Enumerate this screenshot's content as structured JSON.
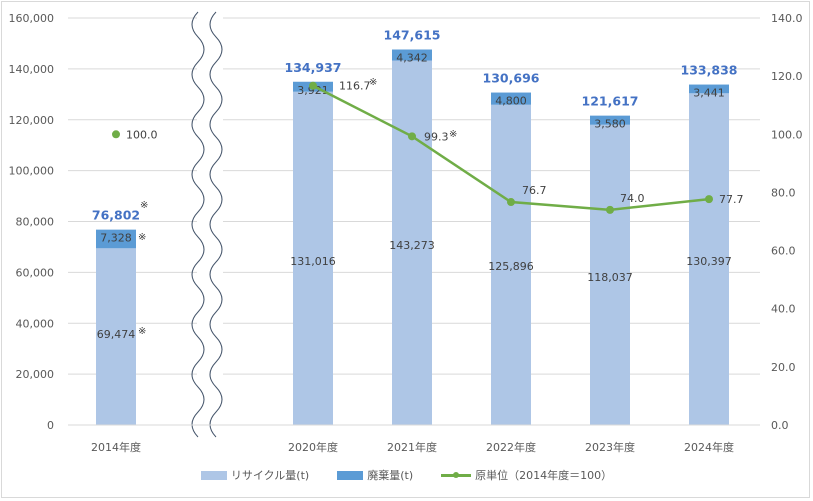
{
  "chart_data": {
    "type": "bar+line",
    "title": "",
    "categories": [
      "2014年度",
      "2020年度",
      "2021年度",
      "2022年度",
      "2023年度",
      "2024年度"
    ],
    "series": [
      {
        "name": "リサイクル量(t)",
        "type": "stacked-bar",
        "axis": "left",
        "color": "#AEC6E6",
        "values": [
          69474,
          131016,
          143273,
          125896,
          118037,
          130397
        ],
        "labels": [
          "69,474",
          "131,016",
          "143,273",
          "125,896",
          "118,037",
          "130,397"
        ]
      },
      {
        "name": "廃棄量(t)",
        "type": "stacked-bar",
        "axis": "left",
        "color": "#5B9BD5",
        "values": [
          7328,
          3921,
          4342,
          4800,
          3580,
          3441
        ],
        "labels": [
          "7,328",
          "3,921",
          "4,342",
          "4,800",
          "3,580",
          "3,441"
        ]
      },
      {
        "name": "原単位（2014年度＝100）",
        "type": "line",
        "axis": "right",
        "color": "#70AD47",
        "values": [
          100.0,
          116.7,
          99.3,
          76.7,
          74.0,
          77.7
        ],
        "labels": [
          "100.0",
          "116.7",
          "99.3",
          "76.7",
          "74.0",
          "77.7"
        ]
      }
    ],
    "totals": [
      76802,
      134937,
      147615,
      130696,
      121617,
      133838
    ],
    "total_labels": [
      "76,802",
      "134,937",
      "147,615",
      "130,696",
      "121,617",
      "133,838"
    ],
    "annotations": [
      "※ on 2014年度 values (76,802 / 7,328 / 69,474)",
      "※ on 116.7 and 99.3"
    ],
    "note_mark": "※",
    "axis_break": "between 2014年度 and 2020年度",
    "y_left": {
      "ticks": [
        "0",
        "20,000",
        "40,000",
        "60,000",
        "80,000",
        "100,000",
        "120,000",
        "140,000",
        "160,000"
      ],
      "range": [
        0,
        160000
      ]
    },
    "y_right": {
      "ticks": [
        "0.0",
        "20.0",
        "40.0",
        "60.0",
        "80.0",
        "100.0",
        "120.0",
        "140.0"
      ],
      "range": [
        0,
        140
      ]
    },
    "grid": true,
    "legend_position": "bottom"
  },
  "legend": {
    "recycle": "リサイクル量(t)",
    "waste": "廃棄量(t)",
    "unit": "原単位（2014年度＝100）"
  }
}
